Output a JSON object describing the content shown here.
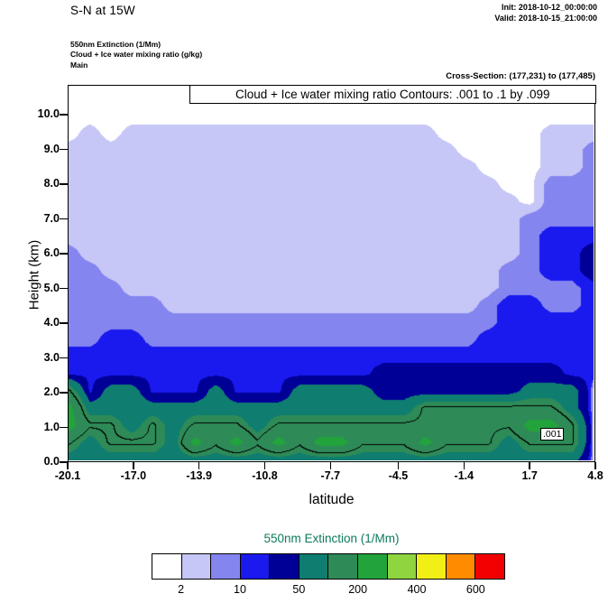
{
  "header": {
    "title": "S-N at 15W",
    "init_label": "Init: 2018-10-12_00:00:00",
    "valid_label": "Valid: 2018-10-15_21:00:00",
    "field_extinction": "550nm Extinction  (1/Mm)",
    "field_cloud_ice": "Cloud + Ice water mixing ratio  (g/kg)",
    "field_model": "Main",
    "cross_section": "Cross-Section: (177,231) to (177,485)"
  },
  "plot": {
    "contour_info": "Cloud + Ice water mixing ratio Contours: .001 to .1 by .099",
    "inline_label": ".001",
    "xlabel": "latitude",
    "ylabel": "Height (km)",
    "x_ticks": [
      "-20.1",
      "-17.0",
      "-13.9",
      "-10.8",
      "-7.7",
      "-4.5",
      "-1.4",
      "1.7",
      "4.8"
    ],
    "y_ticks": [
      "0.0",
      "1.0",
      "2.0",
      "3.0",
      "4.0",
      "5.0",
      "6.0",
      "7.0",
      "8.0",
      "9.0",
      "10.0"
    ]
  },
  "colorbar": {
    "title": "550nm Extinction  (1/Mm)",
    "title_color": "#0b7a5e",
    "labels": [
      "2",
      "10",
      "50",
      "200",
      "400",
      "600"
    ]
  },
  "chart_data": {
    "type": "heatmap",
    "title": "Cloud + Ice water mixing ratio Contours: .001 to .1 by .099",
    "xlabel": "latitude",
    "ylabel": "Height (km)",
    "units": "1/Mm",
    "x_range": [
      -20.1,
      4.8
    ],
    "y_range": [
      0,
      10.86
    ],
    "x_tick_values": [
      -20.1,
      -17.0,
      -13.9,
      -10.8,
      -7.7,
      -4.5,
      -1.4,
      1.7,
      4.8
    ],
    "y_tick_values": [
      0,
      1,
      2,
      3,
      4,
      5,
      6,
      7,
      8,
      9,
      10
    ],
    "levels": [
      2,
      5,
      10,
      20,
      50,
      100,
      200,
      300,
      400,
      500,
      600
    ],
    "level_colors": [
      "#ffffff",
      "#c6c6f7",
      "#8585f0",
      "#1a1aef",
      "#000096",
      "#0f7d70",
      "#2e8b57",
      "#23a33c",
      "#8fd53f",
      "#f2ef17",
      "#ff8c00",
      "#f20000"
    ],
    "colorbar_labels": [
      "2",
      "10",
      "50",
      "200",
      "400",
      "600"
    ],
    "overlay_contour": {
      "label": ".001",
      "value": 130,
      "max_height_km": 3.05
    },
    "grid_top_height_km": 10.5,
    "grid_step_km": 0.5,
    "grid": [
      [
        1,
        1,
        1,
        1,
        1,
        1,
        1,
        1,
        1,
        1,
        1,
        1,
        1,
        1,
        1,
        1,
        1,
        1,
        1,
        1,
        1,
        1,
        1,
        1,
        1,
        1
      ],
      [
        1,
        1,
        1,
        1,
        1,
        1,
        1,
        1,
        1,
        1,
        1,
        1,
        1,
        1,
        1,
        1,
        1,
        1,
        1,
        1,
        1,
        1,
        1,
        1,
        1,
        1
      ],
      [
        1,
        3,
        1,
        3,
        3,
        3,
        3,
        3,
        3,
        3,
        3,
        3,
        3,
        3,
        3,
        3,
        3,
        3,
        1,
        1,
        1,
        1,
        1,
        3,
        3,
        3
      ],
      [
        3,
        3,
        3,
        3,
        3,
        3,
        3,
        3,
        3,
        3,
        3,
        3,
        3,
        3,
        3,
        3,
        3,
        3,
        3,
        1,
        1,
        1,
        1,
        3,
        3,
        7
      ],
      [
        3,
        3,
        3,
        3,
        3,
        3,
        3,
        3,
        3,
        3,
        3,
        3,
        3,
        3,
        3,
        3,
        3,
        3,
        3,
        3,
        1,
        1,
        1,
        3,
        3,
        7
      ],
      [
        3,
        3,
        3,
        3,
        3,
        3,
        3,
        3,
        3,
        3,
        3,
        3,
        3,
        3,
        3,
        3,
        3,
        3,
        3,
        3,
        3,
        1,
        1,
        7,
        7,
        7
      ],
      [
        3,
        3,
        3,
        3,
        3,
        3,
        3,
        3,
        3,
        3,
        3,
        3,
        3,
        3,
        3,
        3,
        3,
        3,
        3,
        3,
        3,
        3,
        1,
        7,
        7,
        7
      ],
      [
        3,
        3,
        3,
        3,
        3,
        3,
        3,
        3,
        3,
        3,
        3,
        3,
        3,
        3,
        3,
        3,
        3,
        3,
        3,
        3,
        3,
        3,
        7,
        7,
        7,
        7
      ],
      [
        3,
        3,
        3,
        3,
        3,
        3,
        3,
        3,
        3,
        3,
        3,
        3,
        3,
        3,
        3,
        3,
        3,
        3,
        3,
        3,
        3,
        3,
        7,
        14,
        14,
        14
      ],
      [
        7,
        3,
        3,
        3,
        3,
        3,
        3,
        3,
        3,
        3,
        3,
        3,
        3,
        3,
        3,
        3,
        3,
        3,
        3,
        3,
        3,
        3,
        7,
        14,
        14,
        30
      ],
      [
        7,
        7,
        3,
        3,
        3,
        3,
        3,
        3,
        3,
        3,
        3,
        3,
        3,
        3,
        3,
        3,
        3,
        3,
        3,
        3,
        3,
        7,
        7,
        14,
        14,
        30
      ],
      [
        7,
        7,
        7,
        3,
        3,
        3,
        3,
        3,
        3,
        3,
        3,
        3,
        3,
        3,
        3,
        3,
        3,
        3,
        3,
        3,
        3,
        7,
        7,
        7,
        7,
        14
      ],
      [
        7,
        7,
        7,
        7,
        7,
        3,
        3,
        3,
        3,
        3,
        3,
        3,
        3,
        3,
        3,
        3,
        3,
        3,
        3,
        3,
        7,
        14,
        14,
        7,
        7,
        14
      ],
      [
        7,
        7,
        7,
        7,
        7,
        7,
        7,
        7,
        7,
        7,
        7,
        7,
        7,
        7,
        7,
        7,
        7,
        7,
        7,
        7,
        7,
        14,
        14,
        14,
        14,
        14
      ],
      [
        7,
        7,
        14,
        14,
        7,
        7,
        7,
        7,
        7,
        7,
        7,
        7,
        7,
        7,
        7,
        7,
        7,
        7,
        7,
        7,
        14,
        14,
        14,
        14,
        14,
        14
      ],
      [
        14,
        14,
        14,
        14,
        14,
        14,
        14,
        14,
        14,
        14,
        14,
        14,
        14,
        14,
        14,
        14,
        14,
        14,
        14,
        14,
        14,
        14,
        14,
        14,
        14,
        14
      ],
      [
        14,
        14,
        14,
        14,
        14,
        14,
        14,
        14,
        14,
        14,
        14,
        14,
        14,
        14,
        14,
        30,
        30,
        30,
        30,
        30,
        30,
        30,
        30,
        30,
        14,
        14
      ],
      [
        140,
        14,
        70,
        70,
        14,
        14,
        14,
        70,
        14,
        14,
        14,
        70,
        70,
        70,
        70,
        30,
        30,
        30,
        30,
        30,
        30,
        30,
        70,
        70,
        70,
        3
      ],
      [
        230,
        70,
        70,
        70,
        70,
        70,
        70,
        70,
        70,
        70,
        70,
        70,
        70,
        70,
        70,
        70,
        70,
        140,
        140,
        140,
        140,
        140,
        140,
        140,
        70,
        3
      ],
      [
        230,
        140,
        140,
        70,
        140,
        70,
        140,
        140,
        140,
        70,
        140,
        140,
        140,
        140,
        140,
        140,
        140,
        140,
        140,
        140,
        140,
        140,
        230,
        230,
        140,
        3
      ],
      [
        140,
        70,
        140,
        140,
        140,
        70,
        230,
        140,
        230,
        140,
        230,
        140,
        230,
        230,
        140,
        140,
        140,
        230,
        140,
        140,
        140,
        70,
        140,
        140,
        140,
        3
      ],
      [
        70,
        70,
        70,
        70,
        70,
        70,
        70,
        70,
        70,
        70,
        70,
        70,
        70,
        70,
        70,
        70,
        70,
        70,
        70,
        70,
        70,
        70,
        70,
        70,
        70,
        3
      ]
    ]
  }
}
